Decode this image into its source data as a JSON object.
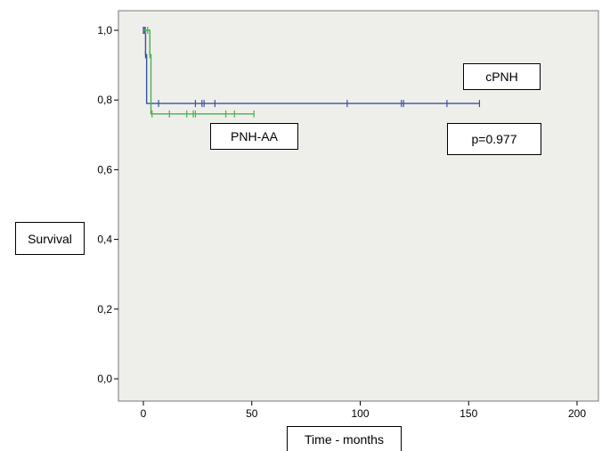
{
  "chart_data": {
    "type": "line",
    "xlabel": "Time -  months",
    "ylabel": "Survival",
    "xlim": [
      0,
      200
    ],
    "ylim": [
      0,
      1
    ],
    "x_ticks": [
      "0",
      "50",
      "100",
      "150",
      "200"
    ],
    "y_ticks": [
      "0,0",
      "0,2",
      "0,4",
      "0,6",
      "0,8",
      "1,0"
    ],
    "grid": false,
    "background": "#eeefea",
    "series": [
      {
        "name": "cPNH",
        "color": "#3d4f9f",
        "steps": [
          [
            0,
            1.0
          ],
          [
            1,
            0.93
          ],
          [
            1.5,
            0.79
          ],
          [
            155,
            0.79
          ]
        ],
        "censored": [
          0,
          0.5,
          1,
          7,
          24,
          27,
          28,
          33,
          94,
          119,
          120,
          140,
          155
        ]
      },
      {
        "name": "PNH-AA",
        "color": "#4caf50",
        "steps": [
          [
            0,
            1.0
          ],
          [
            3,
            1.0
          ],
          [
            3,
            0.93
          ],
          [
            3.5,
            0.76
          ],
          [
            51,
            0.76
          ]
        ],
        "censored": [
          1,
          2,
          3,
          4,
          12,
          20,
          23,
          24,
          38,
          42,
          51
        ]
      }
    ],
    "annotations": {
      "cpnh_label": "cPNH",
      "pnhaa_label": "PNH-AA",
      "p_value": "p=0.977"
    }
  }
}
